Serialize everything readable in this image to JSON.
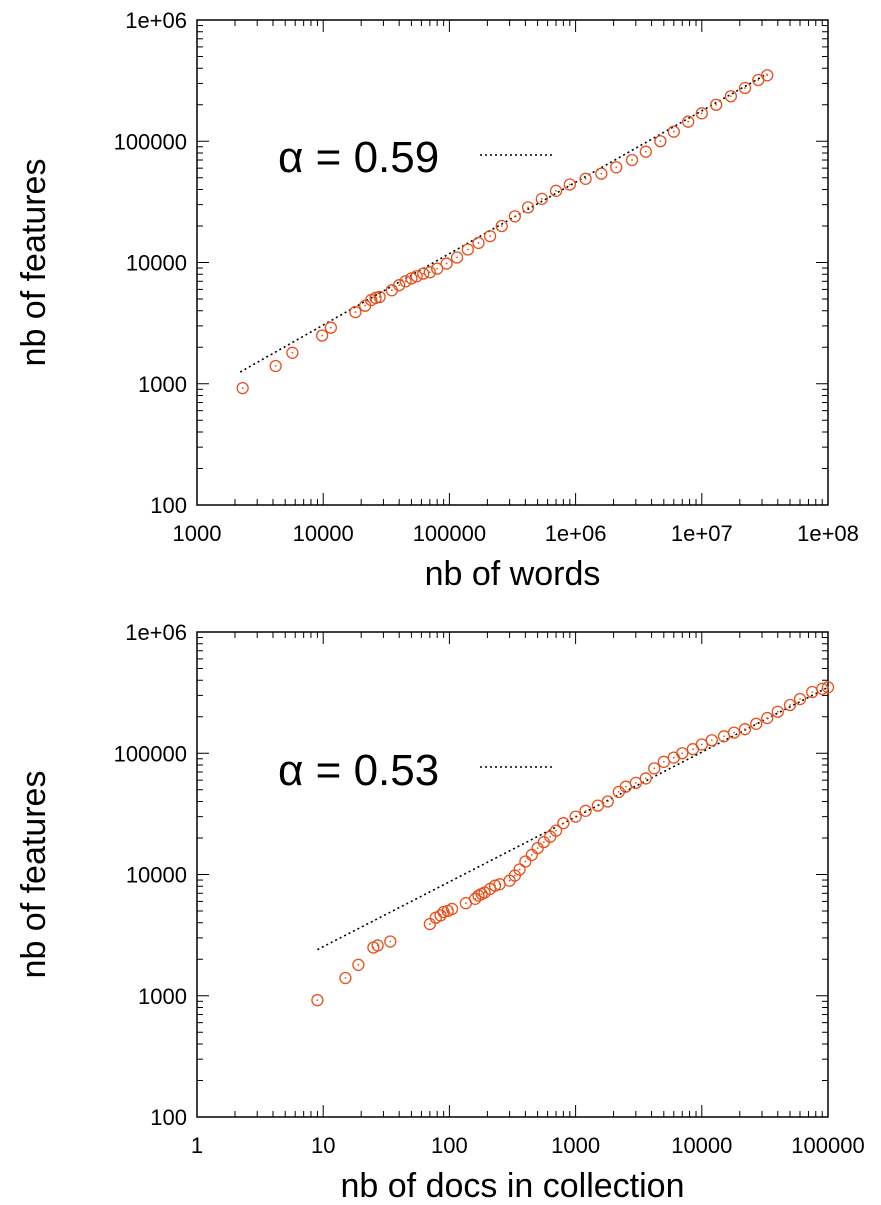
{
  "chart_data": [
    {
      "type": "scatter",
      "xlabel": "nb of words",
      "ylabel": "nb of features",
      "xscale": "log",
      "yscale": "log",
      "xlim": [
        1000,
        100000000
      ],
      "ylim": [
        100,
        1000000
      ],
      "x_ticks": [
        "1000",
        "10000",
        "100000",
        "1e+06",
        "1e+07",
        "1e+08"
      ],
      "y_ticks": [
        "100",
        "1000",
        "10000",
        "100000",
        "1e+06"
      ],
      "annotation": "α = 0.59",
      "fit_line": {
        "x": [
          2200,
          33000000
        ],
        "y": [
          1250,
          360000
        ],
        "style": "dotted",
        "color": "#000000"
      },
      "marker": "open-circle",
      "color": "#e8501c",
      "series": [
        {
          "x": [
            2300,
            4200,
            5700,
            9800,
            11500,
            18000,
            21500,
            24000,
            26000,
            28000,
            35000,
            40000,
            45000,
            50000,
            55000,
            62000,
            70000,
            80000,
            95000,
            115000,
            140000,
            170000,
            210000,
            260000,
            330000,
            420000,
            540000,
            700000,
            900000,
            1200000,
            1600000,
            2100000,
            2800000,
            3600000,
            4700000,
            6000000,
            7800000,
            10000000,
            13000000,
            17000000,
            22000000,
            28000000,
            33000000
          ],
          "y": [
            920,
            1400,
            1800,
            2500,
            2900,
            3900,
            4400,
            4900,
            5100,
            5200,
            5900,
            6500,
            7000,
            7400,
            7700,
            8100,
            8300,
            8900,
            9800,
            11000,
            12800,
            14500,
            16500,
            20000,
            24000,
            28500,
            33500,
            39000,
            44000,
            49000,
            54000,
            61000,
            70000,
            82000,
            100000,
            120000,
            145000,
            170000,
            200000,
            235000,
            275000,
            320000,
            350000
          ]
        }
      ]
    },
    {
      "type": "scatter",
      "xlabel": "nb of docs in collection",
      "ylabel": "nb of features",
      "xscale": "log",
      "yscale": "log",
      "xlim": [
        1,
        100000
      ],
      "ylim": [
        100,
        1000000
      ],
      "x_ticks": [
        "1",
        "10",
        "100",
        "1000",
        "10000",
        "100000"
      ],
      "y_ticks": [
        "100",
        "1000",
        "10000",
        "100000",
        "1e+06"
      ],
      "annotation": "α = 0.53",
      "fit_line": {
        "x": [
          9,
          100000
        ],
        "y": [
          2400,
          350000
        ],
        "style": "dotted",
        "color": "#000000"
      },
      "marker": "open-circle",
      "color": "#e8501c",
      "series": [
        {
          "x": [
            9,
            15,
            19,
            25,
            27,
            34,
            70,
            78,
            85,
            90,
            97,
            105,
            135,
            160,
            170,
            180,
            190,
            210,
            230,
            250,
            300,
            330,
            360,
            400,
            450,
            500,
            560,
            630,
            700,
            800,
            1000,
            1200,
            1500,
            1800,
            2200,
            2500,
            3000,
            3600,
            4200,
            5000,
            6000,
            7000,
            8500,
            10000,
            12000,
            15000,
            18000,
            22000,
            27000,
            33000,
            40000,
            50000,
            60000,
            75000,
            90000,
            100000
          ],
          "y": [
            920,
            1400,
            1800,
            2500,
            2600,
            2800,
            3900,
            4400,
            4600,
            4900,
            5000,
            5200,
            5800,
            6300,
            6700,
            6900,
            7100,
            7600,
            8100,
            8300,
            8900,
            9800,
            11000,
            12800,
            14500,
            16500,
            18500,
            20500,
            23000,
            26500,
            30000,
            33500,
            37000,
            40000,
            48000,
            53000,
            57000,
            62000,
            75000,
            85000,
            92000,
            100000,
            108000,
            118000,
            128000,
            138000,
            148000,
            158000,
            175000,
            195000,
            220000,
            250000,
            280000,
            320000,
            340000,
            350000
          ]
        }
      ]
    }
  ]
}
